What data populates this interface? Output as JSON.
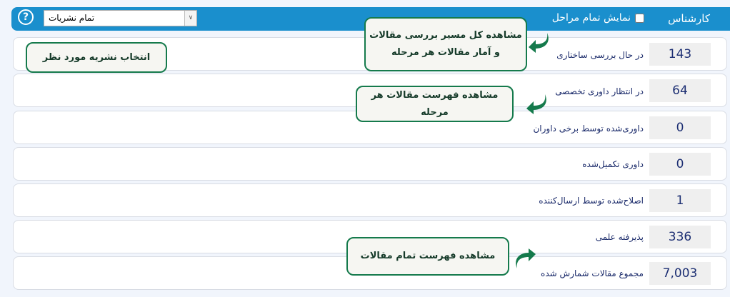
{
  "header": {
    "title": "کارشناس",
    "show_all_label": "نمایش تمام مراحل",
    "show_all_checked": false,
    "journal_select_value": "تمام نشریات",
    "help_icon": "question-circle-icon",
    "color": "#1a8fcd"
  },
  "rows": [
    {
      "label": "در حال بررسی ساختاری",
      "value": "143"
    },
    {
      "label": "در انتظار داوری تخصصی",
      "value": "64"
    },
    {
      "label": "داوری‌شده توسط برخی داوران",
      "value": "0"
    },
    {
      "label": "داوری تکمیل‌شده",
      "value": "0"
    },
    {
      "label": "اصلاح‌شده توسط ارسال‌کننده",
      "value": "1"
    },
    {
      "label": "پذیرفته علمی",
      "value": "336"
    },
    {
      "label": "مجموع مقالات شمارش شده",
      "value": "7,003"
    }
  ],
  "callouts": {
    "path": "مشاهده کل مسیر بررسی مقالات و آمار مقالات هر مرحله",
    "select_journal": "انتخاب نشریه مورد نظر",
    "stage_list": "مشاهده فهرست مقالات هر مرحله",
    "all_list": "مشاهده فهرست تمام مقالات",
    "accent": "#157a4c"
  }
}
